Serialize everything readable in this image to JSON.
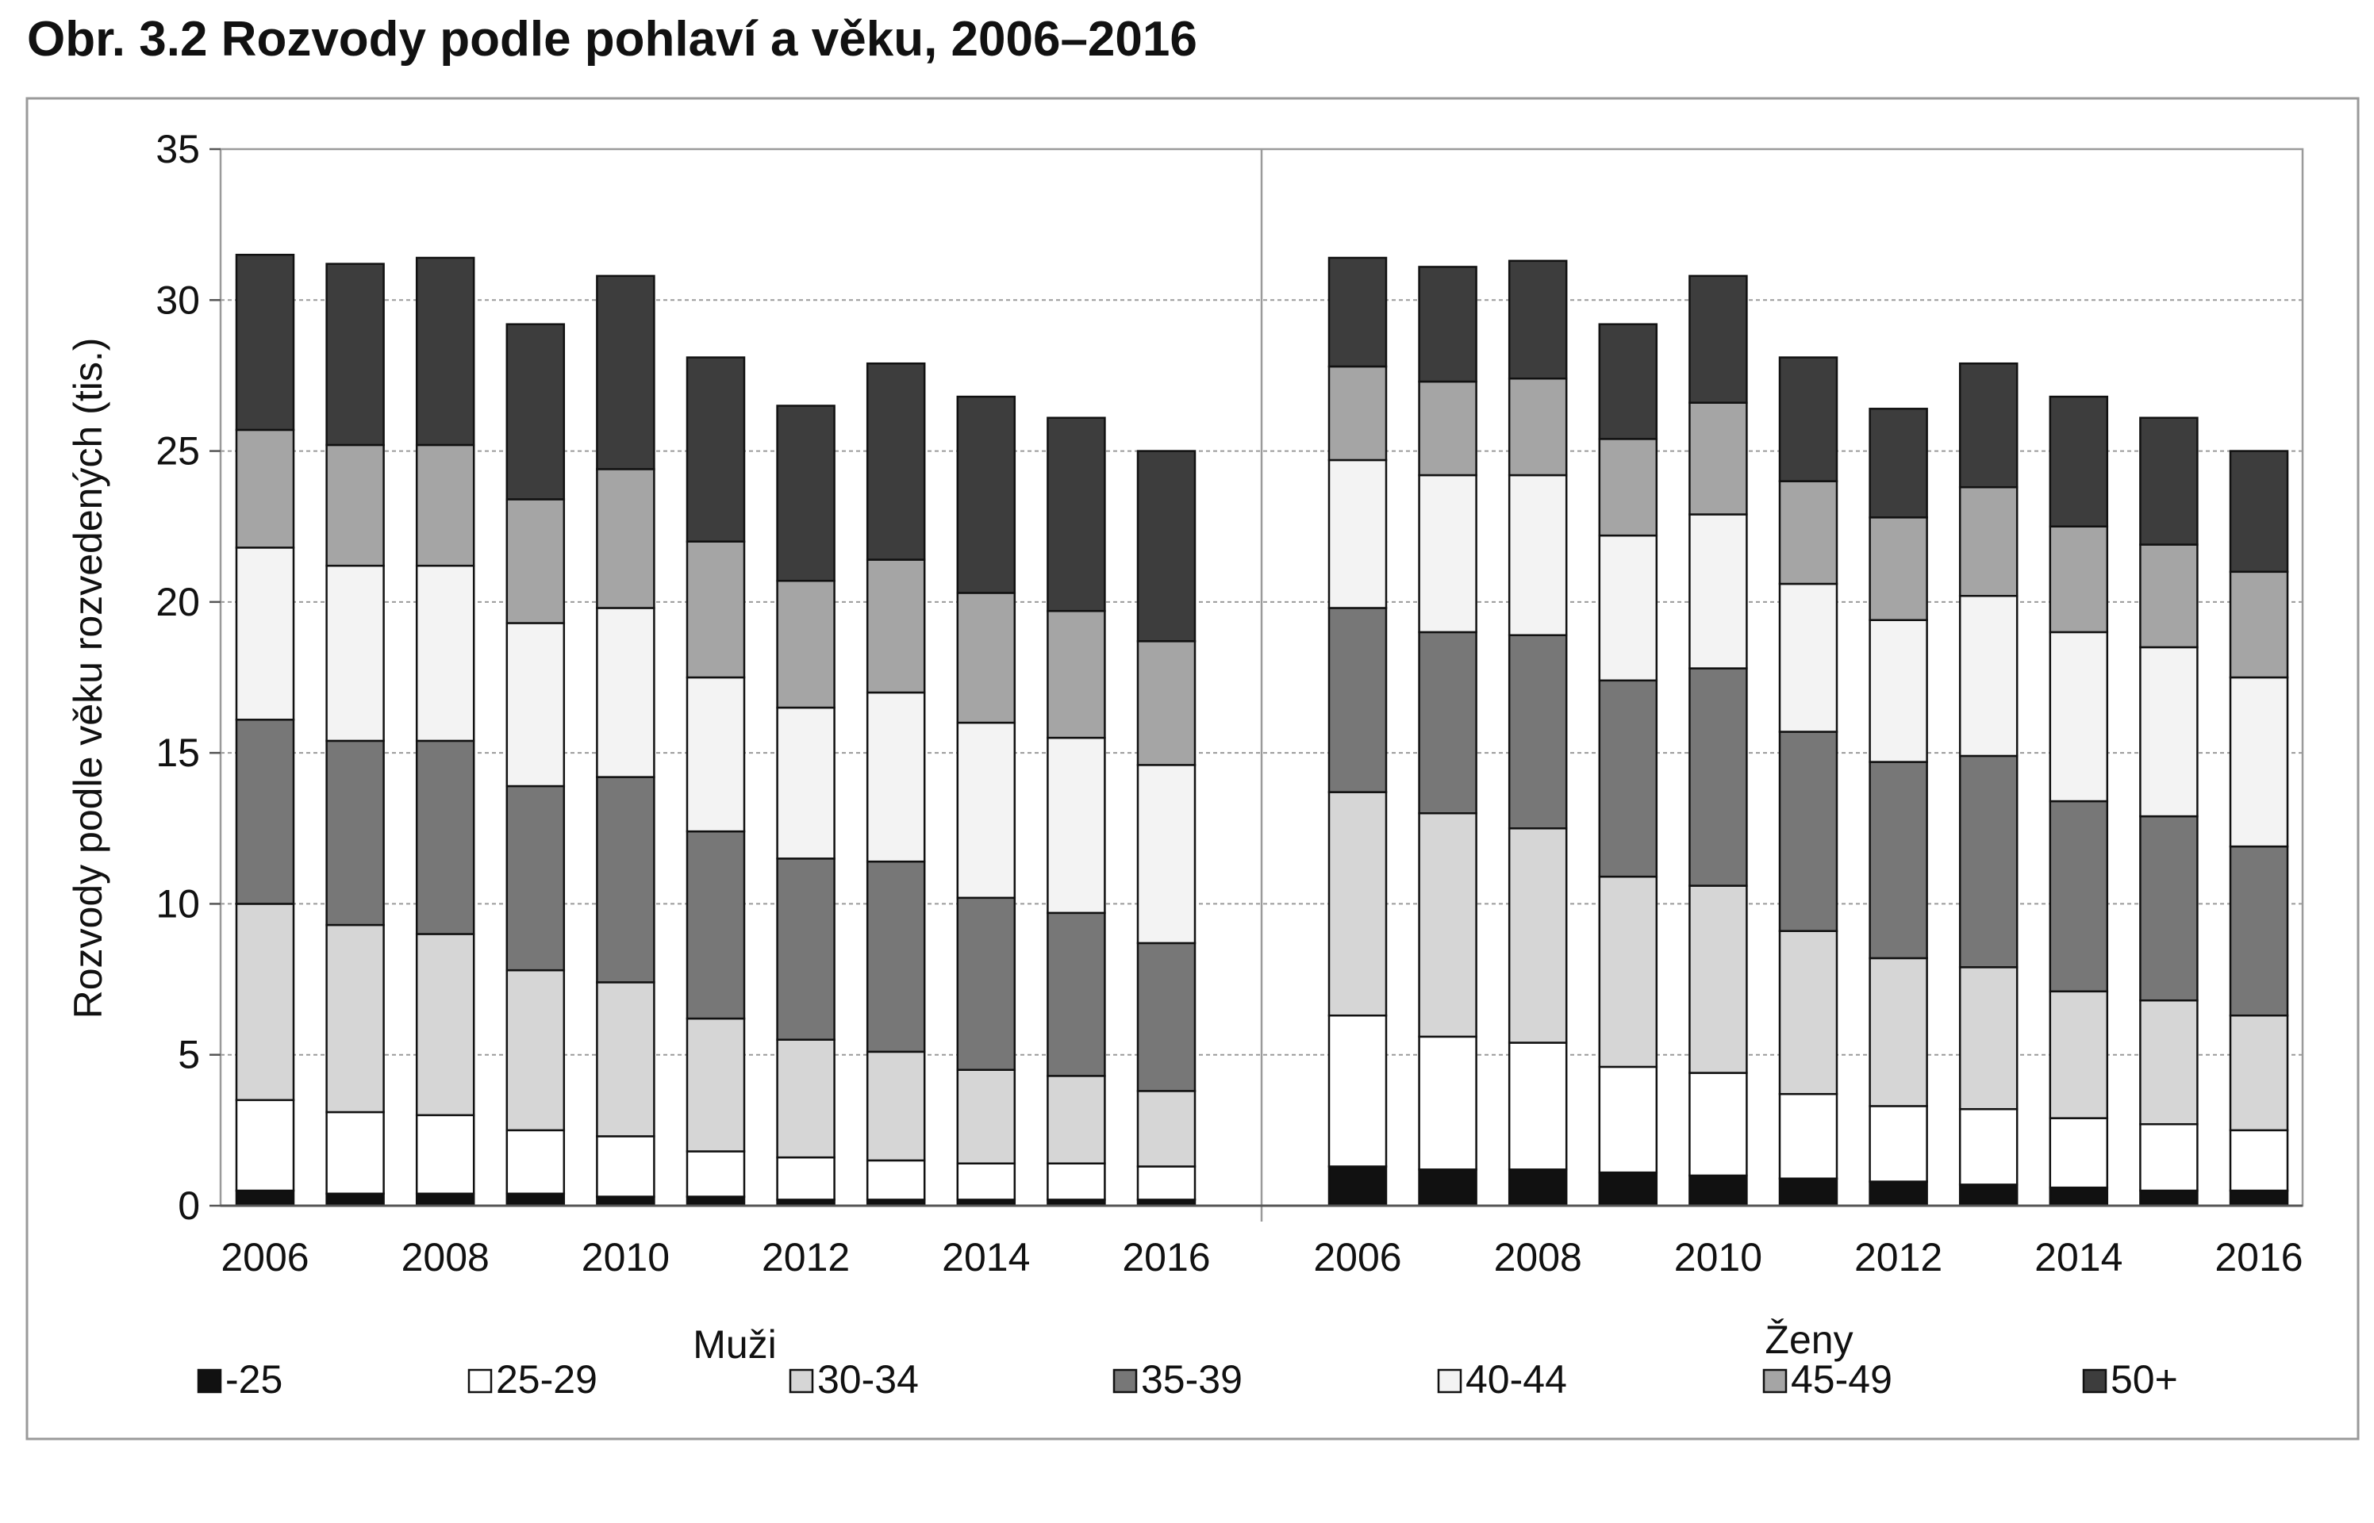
{
  "title": "Obr. 3.2 Rozvody podle pohlaví a věku, 2006–2016",
  "chart_data": {
    "type": "bar",
    "stacked": true,
    "ylabel": "Rozvody podle věku rozvedených (tis.)",
    "ylim": [
      0,
      35
    ],
    "yticks": [
      "0",
      "5",
      "10",
      "15",
      "20",
      "25",
      "30",
      "35"
    ],
    "grid": true,
    "legend_position": "bottom",
    "groups": [
      {
        "label": "Muži",
        "categories": [
          "2006",
          "2007",
          "2008",
          "2009",
          "2010",
          "2011",
          "2012",
          "2013",
          "2014",
          "2015",
          "2016"
        ],
        "tick_labels": [
          "2006",
          "2008",
          "2010",
          "2012",
          "2014",
          "2016"
        ],
        "series": [
          {
            "name": "-25",
            "values": [
              0.5,
              0.4,
              0.4,
              0.4,
              0.3,
              0.3,
              0.2,
              0.2,
              0.2,
              0.2,
              0.2
            ]
          },
          {
            "name": "25-29",
            "values": [
              3.0,
              2.7,
              2.6,
              2.1,
              2.0,
              1.5,
              1.4,
              1.3,
              1.2,
              1.2,
              1.1
            ]
          },
          {
            "name": "30-34",
            "values": [
              6.5,
              6.2,
              6.0,
              5.3,
              5.1,
              4.4,
              3.9,
              3.6,
              3.1,
              2.9,
              2.5
            ]
          },
          {
            "name": "35-39",
            "values": [
              6.1,
              6.1,
              6.4,
              6.1,
              6.8,
              6.2,
              6.0,
              6.3,
              5.7,
              5.4,
              4.9
            ]
          },
          {
            "name": "40-44",
            "values": [
              5.7,
              5.8,
              5.8,
              5.4,
              5.6,
              5.1,
              5.0,
              5.6,
              5.8,
              5.8,
              5.9
            ]
          },
          {
            "name": "45-49",
            "values": [
              3.9,
              4.0,
              4.0,
              4.1,
              4.6,
              4.5,
              4.2,
              4.4,
              4.3,
              4.2,
              4.1
            ]
          },
          {
            "name": "50+",
            "values": [
              5.8,
              6.0,
              6.2,
              5.8,
              6.4,
              6.1,
              5.8,
              6.5,
              6.5,
              6.4,
              6.3
            ]
          }
        ]
      },
      {
        "label": "Ženy",
        "categories": [
          "2006",
          "2007",
          "2008",
          "2009",
          "2010",
          "2011",
          "2012",
          "2013",
          "2014",
          "2015",
          "2016"
        ],
        "tick_labels": [
          "2006",
          "2008",
          "2010",
          "2012",
          "2014",
          "2016"
        ],
        "series": [
          {
            "name": "-25",
            "values": [
              1.3,
              1.2,
              1.2,
              1.1,
              1.0,
              0.9,
              0.8,
              0.7,
              0.6,
              0.5,
              0.5
            ]
          },
          {
            "name": "25-29",
            "values": [
              5.0,
              4.4,
              4.2,
              3.5,
              3.4,
              2.8,
              2.5,
              2.5,
              2.3,
              2.2,
              2.0
            ]
          },
          {
            "name": "30-34",
            "values": [
              7.4,
              7.4,
              7.1,
              6.3,
              6.2,
              5.4,
              4.9,
              4.7,
              4.2,
              4.1,
              3.8
            ]
          },
          {
            "name": "35-39",
            "values": [
              6.1,
              6.0,
              6.4,
              6.5,
              7.2,
              6.6,
              6.5,
              7.0,
              6.3,
              6.1,
              5.6
            ]
          },
          {
            "name": "40-44",
            "values": [
              4.9,
              5.2,
              5.3,
              4.8,
              5.1,
              4.9,
              4.7,
              5.3,
              5.6,
              5.6,
              5.6
            ]
          },
          {
            "name": "45-49",
            "values": [
              3.1,
              3.1,
              3.2,
              3.2,
              3.7,
              3.4,
              3.4,
              3.6,
              3.5,
              3.4,
              3.5
            ]
          },
          {
            "name": "50+",
            "values": [
              3.6,
              3.8,
              3.9,
              3.8,
              4.2,
              4.1,
              3.6,
              4.1,
              4.3,
              4.2,
              4.0
            ]
          }
        ]
      }
    ],
    "colors": [
      "#111111",
      "#ffffff",
      "#d6d6d6",
      "#777777",
      "#f3f3f3",
      "#a5a5a5",
      "#3d3d3d"
    ]
  }
}
